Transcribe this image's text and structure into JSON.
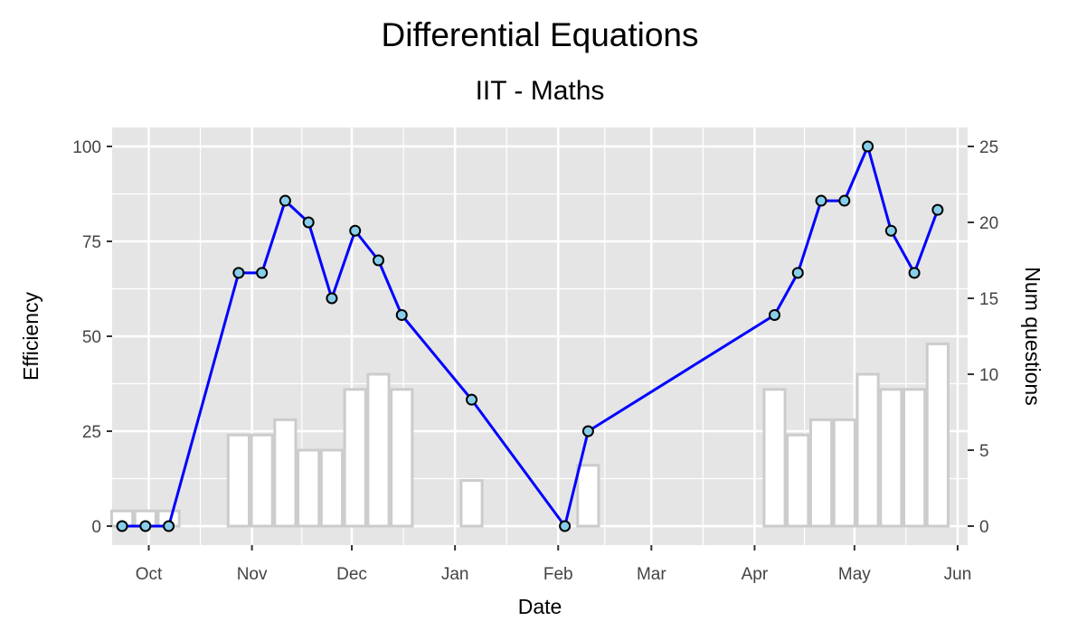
{
  "chart_data": {
    "type": "bar+line",
    "title": "Differential Equations",
    "subtitle": "IIT - Maths",
    "xlabel": "Date",
    "ylabel_left": "Efficiency",
    "ylabel_right": "Num questions",
    "x_ticks": [
      "Oct",
      "Nov",
      "Dec",
      "Jan",
      "Feb",
      "Mar",
      "Apr",
      "May",
      "Jun"
    ],
    "y_left_ticks": [
      "0",
      "25",
      "50",
      "75",
      "100"
    ],
    "y_right_ticks": [
      "0",
      "5",
      "10",
      "15",
      "20",
      "25"
    ],
    "y_left_range": [
      -5,
      105
    ],
    "y_right_range": [
      -1.25,
      26.25
    ],
    "x_range": [
      "2020-09-20",
      "2021-06-04"
    ],
    "x_axis": [
      "2020-09-23",
      "2020-09-30",
      "2020-10-07",
      "2020-10-28",
      "2020-11-04",
      "2020-11-11",
      "2020-11-18",
      "2020-11-25",
      "2020-12-02",
      "2020-12-09",
      "2020-12-16",
      "2021-01-06",
      "2021-02-03",
      "2021-02-10",
      "2021-04-07",
      "2021-04-14",
      "2021-04-21",
      "2021-04-28",
      "2021-05-05",
      "2021-05-12",
      "2021-05-19",
      "2021-05-26"
    ],
    "series": [
      {
        "name": "Num questions",
        "type": "bar",
        "axis": "right",
        "values": [
          1,
          1,
          1,
          6,
          6,
          7,
          5,
          5,
          9,
          10,
          9,
          3,
          0,
          4,
          9,
          6,
          7,
          7,
          10,
          9,
          9,
          12
        ]
      },
      {
        "name": "Efficiency",
        "type": "line",
        "axis": "left",
        "values": [
          0,
          0,
          0,
          66.7,
          66.7,
          85.7,
          80,
          60,
          77.8,
          70,
          55.6,
          33.3,
          0,
          25,
          55.6,
          66.7,
          85.7,
          85.7,
          100,
          77.8,
          66.7,
          83.3
        ]
      }
    ],
    "grid": true,
    "legend": "none",
    "colors": {
      "panel_background": "#e5e5e5",
      "grid_major": "#ffffff",
      "bar_fill": "#ffffff",
      "bar_outline": "#cccccc",
      "line": "#0000ff",
      "point_fill": "#87ceeb",
      "point_outline": "#000000"
    }
  }
}
